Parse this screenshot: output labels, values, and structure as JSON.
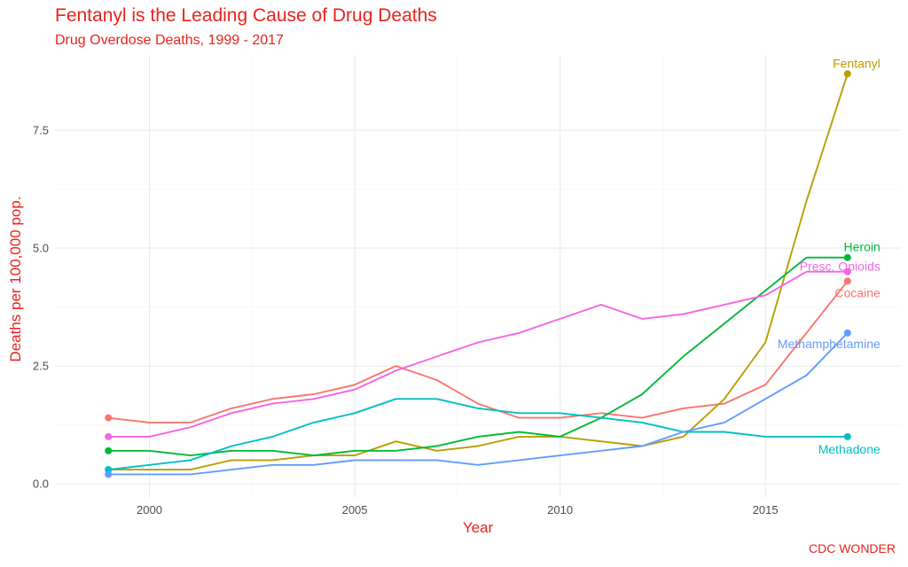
{
  "title": "Fentanyl is the Leading Cause of Drug Deaths",
  "subtitle": "Drug Overdose Deaths, 1999 - 2017",
  "caption": "CDC WONDER",
  "chart_data": {
    "type": "line",
    "title": "Fentanyl is the Leading Cause of Drug Deaths",
    "subtitle": "Drug Overdose Deaths, 1999 - 2017",
    "xlabel": "Year",
    "ylabel": "Deaths per 100,000 pop.",
    "xlim": [
      1997.7,
      2018.3
    ],
    "ylim": [
      -0.3,
      9.1
    ],
    "x_ticks": [
      2000,
      2005,
      2010,
      2015
    ],
    "y_ticks": [
      0.0,
      2.5,
      5.0,
      7.5
    ],
    "y_tick_labels": [
      "0.0",
      "2.5",
      "5.0",
      "7.5"
    ],
    "grid": true,
    "legend": "direct labels at line ends",
    "x": [
      1999,
      2000,
      2001,
      2002,
      2003,
      2004,
      2005,
      2006,
      2007,
      2008,
      2009,
      2010,
      2011,
      2012,
      2013,
      2014,
      2015,
      2016,
      2017
    ],
    "series": [
      {
        "name": "Cocaine",
        "color": "#f8766d",
        "values": [
          1.4,
          1.3,
          1.3,
          1.6,
          1.8,
          1.9,
          2.1,
          2.5,
          2.2,
          1.7,
          1.4,
          1.4,
          1.5,
          1.4,
          1.6,
          1.7,
          2.1,
          3.2,
          4.3
        ]
      },
      {
        "name": "Fentanyl",
        "color": "#b79f00",
        "values": [
          0.3,
          0.3,
          0.3,
          0.5,
          0.5,
          0.6,
          0.6,
          0.9,
          0.7,
          0.8,
          1.0,
          1.0,
          0.9,
          0.8,
          1.0,
          1.8,
          3.0,
          6.0,
          8.7
        ]
      },
      {
        "name": "Heroin",
        "color": "#00ba38",
        "values": [
          0.7,
          0.7,
          0.6,
          0.7,
          0.7,
          0.6,
          0.7,
          0.7,
          0.8,
          1.0,
          1.1,
          1.0,
          1.4,
          1.9,
          2.7,
          3.4,
          4.1,
          4.8,
          4.8
        ]
      },
      {
        "name": "Methadone",
        "color": "#00bfc4",
        "values": [
          0.3,
          0.4,
          0.5,
          0.8,
          1.0,
          1.3,
          1.5,
          1.8,
          1.8,
          1.6,
          1.5,
          1.5,
          1.4,
          1.3,
          1.1,
          1.1,
          1.0,
          1.0,
          1.0
        ]
      },
      {
        "name": "Methamphetamine",
        "color": "#619cff",
        "values": [
          0.2,
          0.2,
          0.2,
          0.3,
          0.4,
          0.4,
          0.5,
          0.5,
          0.5,
          0.4,
          0.5,
          0.6,
          0.7,
          0.8,
          1.1,
          1.3,
          1.8,
          2.3,
          3.2
        ]
      },
      {
        "name": "Presc. Opioids",
        "color": "#f564e3",
        "values": [
          1.0,
          1.0,
          1.2,
          1.5,
          1.7,
          1.8,
          2.0,
          2.4,
          2.7,
          3.0,
          3.2,
          3.5,
          3.8,
          3.5,
          3.6,
          3.8,
          4.0,
          4.5,
          4.5
        ]
      }
    ]
  }
}
